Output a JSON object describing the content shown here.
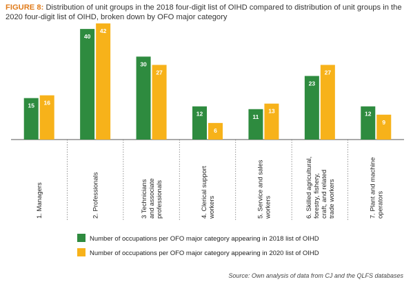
{
  "figure": {
    "label": "FIGURE 8:",
    "caption": "Distribution of unit groups in the 2018 four-digit list of OIHD compared to distribution of unit groups in the 2020 four-digit list of OIHD, broken down by OFO major category"
  },
  "source_note": "Source: Own analysis of data from CJ and the QLFS databases",
  "colors": {
    "series_2018": "#2e8b3f",
    "series_2020": "#f7b21a",
    "title_accent": "#e07b1a"
  },
  "chart_data": {
    "type": "bar",
    "categories": [
      [
        "1.  Managers"
      ],
      [
        "2.  Professionals"
      ],
      [
        "3  Technicians",
        "and associate",
        "professionals"
      ],
      [
        "4.  Clerical support",
        "workers"
      ],
      [
        "5.  Service and sales",
        "workers"
      ],
      [
        "6.  Skilled agricultural,",
        "forestry, fishery,",
        "craft, and related",
        "trade workers"
      ],
      [
        "7.  Plant and machine",
        "operators"
      ]
    ],
    "series": [
      {
        "name": "Number of occupations per OFO major category appearing in 2018 list of OIHD",
        "values": [
          15,
          40,
          30,
          12,
          11,
          23,
          12
        ]
      },
      {
        "name": "Number of occupations per OFO major category appearing in 2020 list of OIHD",
        "values": [
          16,
          42,
          27,
          6,
          13,
          27,
          9
        ]
      }
    ],
    "ylim": [
      0,
      45
    ],
    "data_labels": true,
    "grid": false,
    "legend_position": "bottom"
  }
}
